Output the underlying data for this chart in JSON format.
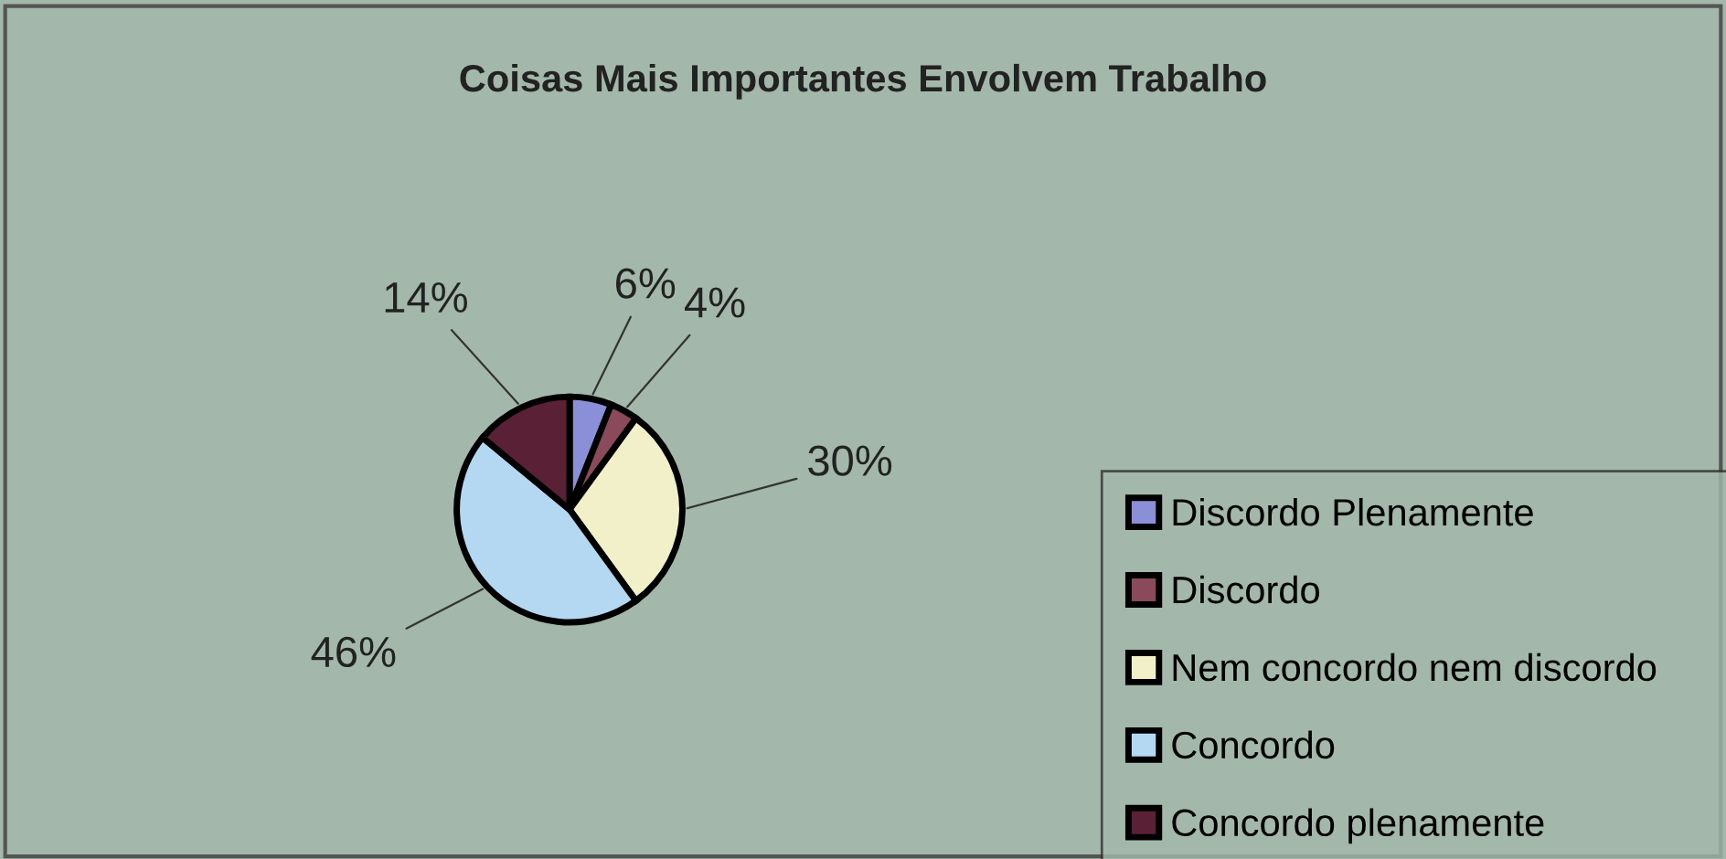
{
  "chart_data": {
    "type": "pie",
    "title": "Coisas Mais Importantes Envolvem Trabalho",
    "categories": [
      "Discordo Plenamente",
      "Discordo",
      "Nem concordo nem discordo",
      "Concordo",
      "Concordo plenamente"
    ],
    "values": [
      6,
      4,
      30,
      46,
      14
    ],
    "value_labels": [
      "6%",
      "4%",
      "30%",
      "46%",
      "14%"
    ],
    "colors": [
      "#8a8fd8",
      "#8a4a5c",
      "#f2f0c8",
      "#b4d8f2",
      "#5a2035"
    ],
    "legend": "right"
  }
}
